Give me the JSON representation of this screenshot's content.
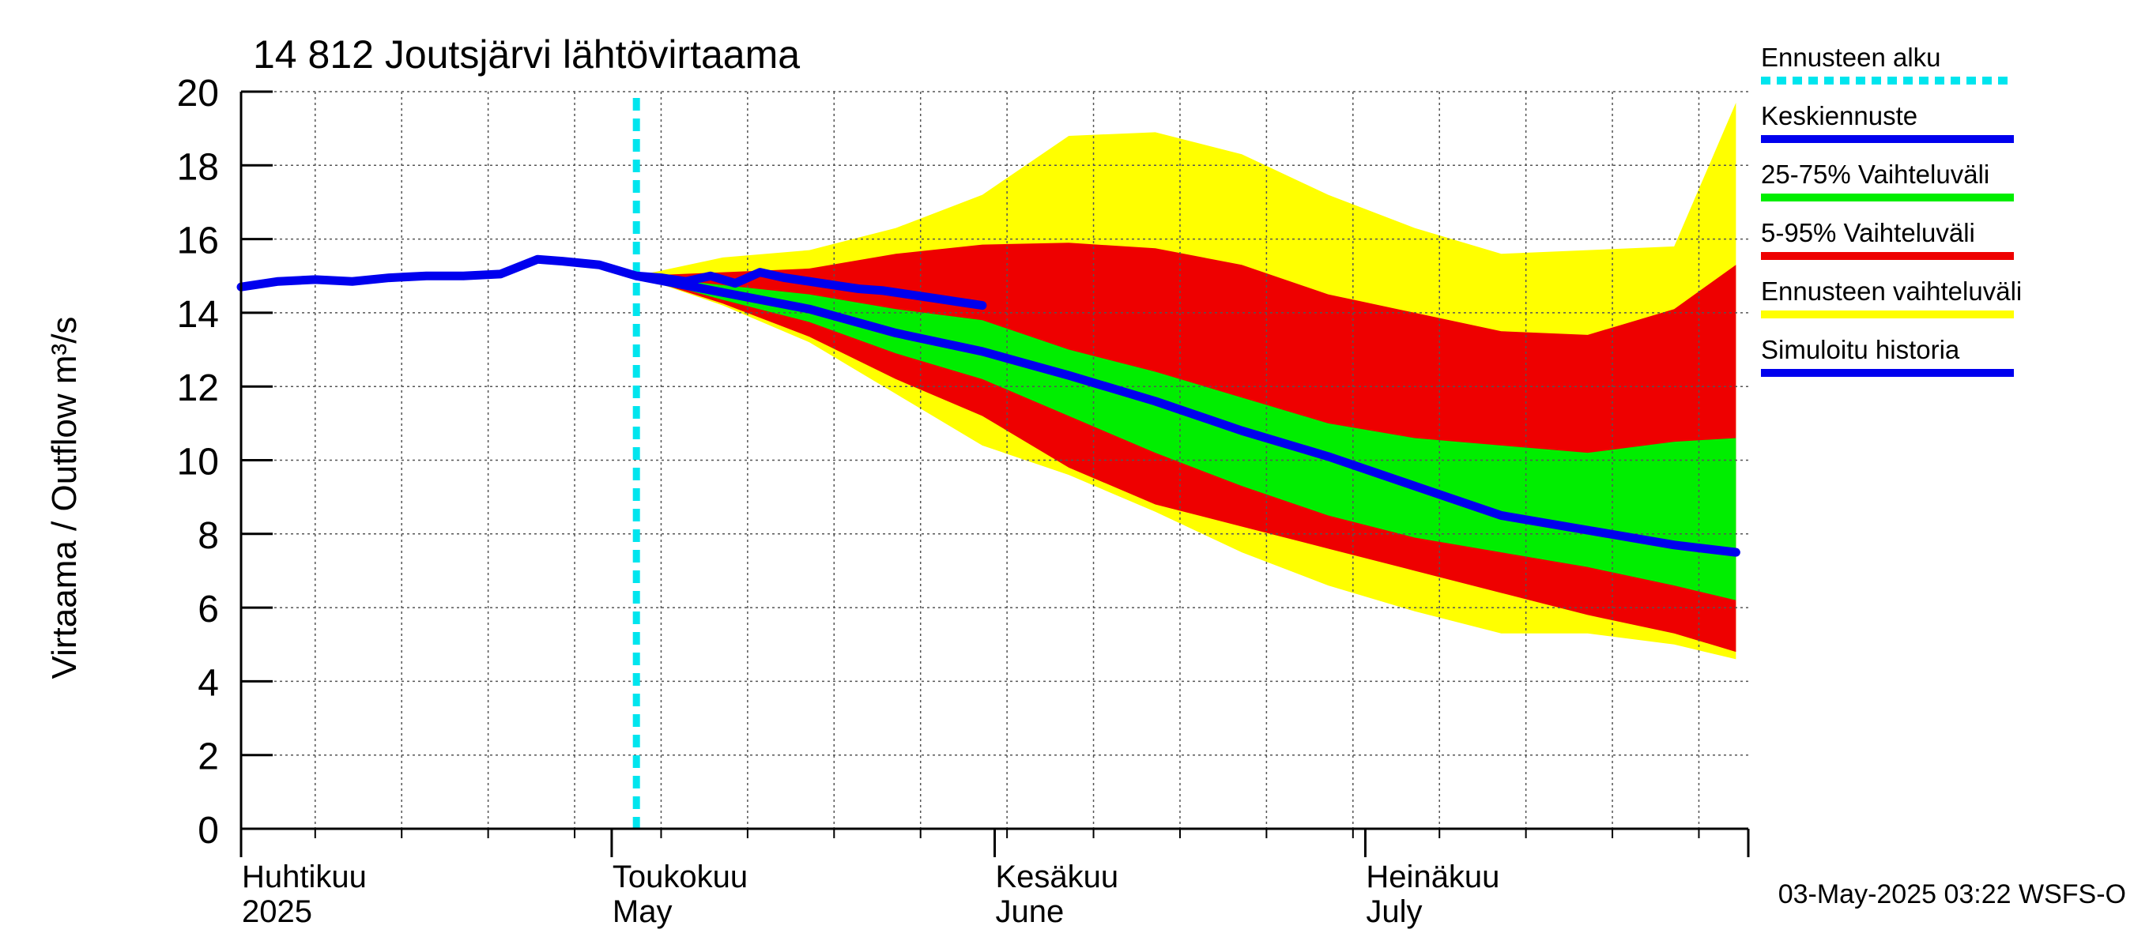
{
  "chart_data": {
    "type": "area",
    "title": "14 812 Joutsjärvi lähtövirtaama",
    "ylabel": "Virtaama / Outflow    m³/s",
    "ylim": [
      0,
      20
    ],
    "yticks": [
      0,
      2,
      4,
      6,
      8,
      10,
      12,
      14,
      16,
      18,
      20
    ],
    "x_range": [
      "2025-04-01",
      "2025-07-31"
    ],
    "grid": true,
    "month_labels": [
      {
        "date": "2025-04-01",
        "line1": "Huhtikuu",
        "line2": "2025"
      },
      {
        "date": "2025-05-01",
        "line1": "Toukokuu",
        "line2": "May"
      },
      {
        "date": "2025-06-01",
        "line1": "Kesäkuu",
        "line2": "June"
      },
      {
        "date": "2025-07-01",
        "line1": "Heinäkuu",
        "line2": "July"
      }
    ],
    "forecast_start": "2025-05-03",
    "legend_position": "right",
    "legend": [
      {
        "label": "Ennusteen alku",
        "color": "#00e5ee",
        "style": "dashed"
      },
      {
        "label": "Keskiennuste",
        "color": "#0000ee",
        "style": "solid"
      },
      {
        "label": "25-75% Vaihteluväli",
        "color": "#00ee00",
        "style": "solid"
      },
      {
        "label": "5-95% Vaihteluväli",
        "color": "#ee0000",
        "style": "solid"
      },
      {
        "label": "Ennusteen vaihteluväli",
        "color": "#ffff00",
        "style": "solid"
      },
      {
        "label": "Simuloitu historia",
        "color": "#0000ee",
        "style": "solid"
      }
    ],
    "colors": {
      "history": "#0000ee",
      "median": "#0000ee",
      "band_25_75": "#00ee00",
      "band_5_95": "#ee0000",
      "band_full": "#ffff00",
      "forecast_start": "#00e5ee"
    },
    "history": {
      "x": [
        "2025-04-01",
        "2025-04-04",
        "2025-04-07",
        "2025-04-10",
        "2025-04-13",
        "2025-04-16",
        "2025-04-19",
        "2025-04-22",
        "2025-04-25",
        "2025-04-27",
        "2025-04-30",
        "2025-05-03",
        "2025-05-05",
        "2025-05-07",
        "2025-05-09",
        "2025-05-11",
        "2025-05-13",
        "2025-05-15",
        "2025-05-17",
        "2025-05-19",
        "2025-05-21",
        "2025-05-23",
        "2025-05-25",
        "2025-05-27",
        "2025-05-29",
        "2025-05-31"
      ],
      "y": [
        14.7,
        14.85,
        14.9,
        14.85,
        14.95,
        15.0,
        15.0,
        15.05,
        15.45,
        15.4,
        15.3,
        15.0,
        14.95,
        14.85,
        15.0,
        14.8,
        15.1,
        14.95,
        14.85,
        14.75,
        14.65,
        14.6,
        14.5,
        14.4,
        14.3,
        14.2
      ]
    },
    "forecast": {
      "x": [
        "2025-05-03",
        "2025-05-10",
        "2025-05-17",
        "2025-05-24",
        "2025-05-31",
        "2025-06-07",
        "2025-06-14",
        "2025-06-21",
        "2025-06-28",
        "2025-07-05",
        "2025-07-12",
        "2025-07-19",
        "2025-07-26",
        "2025-07-31"
      ],
      "median": [
        15.0,
        14.55,
        14.1,
        13.45,
        12.95,
        12.3,
        11.6,
        10.8,
        10.1,
        9.3,
        8.5,
        8.1,
        7.7,
        7.5
      ],
      "p25": [
        15.0,
        14.35,
        13.75,
        12.9,
        12.2,
        11.2,
        10.2,
        9.3,
        8.5,
        7.9,
        7.5,
        7.1,
        6.6,
        6.2
      ],
      "p75": [
        15.0,
        14.75,
        14.5,
        14.1,
        13.8,
        13.0,
        12.4,
        11.7,
        11.0,
        10.6,
        10.4,
        10.2,
        10.5,
        10.6
      ],
      "p05": [
        15.0,
        14.25,
        13.35,
        12.2,
        11.2,
        9.8,
        8.8,
        8.2,
        7.6,
        7.0,
        6.4,
        5.8,
        5.3,
        4.8
      ],
      "p95": [
        15.0,
        15.1,
        15.2,
        15.6,
        15.85,
        15.9,
        15.75,
        15.3,
        14.5,
        14.0,
        13.5,
        13.4,
        14.1,
        15.3
      ],
      "min": [
        15.0,
        14.2,
        13.2,
        11.8,
        10.4,
        9.6,
        8.6,
        7.5,
        6.6,
        5.9,
        5.3,
        5.3,
        5.0,
        4.6
      ],
      "max": [
        15.0,
        15.5,
        15.7,
        16.3,
        17.2,
        18.8,
        18.9,
        18.3,
        17.2,
        16.3,
        15.6,
        15.7,
        15.8,
        19.7
      ]
    },
    "footer": "03-May-2025 03:22 WSFS-O"
  }
}
